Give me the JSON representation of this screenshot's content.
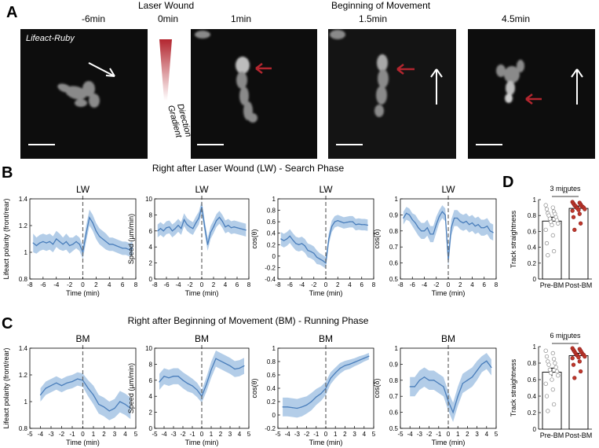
{
  "panel_labels": {
    "a": "A",
    "b": "B",
    "c": "C",
    "d": "D"
  },
  "panelA": {
    "labels": {
      "laser_wound": "Laser Wound",
      "beginning_of_movement": "Beginning of Movement",
      "lifeact": "Lifeact-Ruby",
      "gradient": "Gradient",
      "direction": "Direction"
    },
    "timepoints": [
      {
        "label": "-6min"
      },
      {
        "label": "0min"
      },
      {
        "label": "1min"
      },
      {
        "label": "1.5min"
      },
      {
        "label": "4.5min"
      }
    ],
    "colors": {
      "arrow_red": "#b3262f",
      "arrow_white": "#ffffff",
      "gradient_top": "#b3262f",
      "gradient_bottom": "#ffffff"
    }
  },
  "titles": {
    "rowB": "Right after Laser Wound (LW) - Search Phase",
    "rowC": "Right after Beginning of Movement (BM) - Running Phase"
  },
  "colors": {
    "line": "#4a7ebb",
    "band": "#b3cde8",
    "dot_post": "#c0392b"
  },
  "chart_data": [
    {
      "id": "B1",
      "type": "line",
      "event": "LW",
      "xlabel": "Time (min)",
      "ylabel": "Lifeact polarity (front/rear)",
      "xlim": [
        -8,
        8
      ],
      "ylim": [
        0.8,
        1.4
      ],
      "xticks": [
        -8,
        -6,
        -4,
        -2,
        0,
        2,
        4,
        6,
        8
      ],
      "yticks": [
        0.8,
        1,
        1.2,
        1.4
      ],
      "ytick_labels": [
        "0.8",
        "1",
        "1.2",
        "1.4"
      ],
      "x": [
        -7.5,
        -7,
        -6.5,
        -6,
        -5.5,
        -5,
        -4.5,
        -4,
        -3.5,
        -3,
        -2.5,
        -2,
        -1.5,
        -1,
        -0.5,
        0,
        0.5,
        1,
        1.5,
        2,
        2.5,
        3,
        3.5,
        4,
        4.5,
        5,
        5.5,
        6,
        6.5,
        7,
        7.5
      ],
      "y": [
        1.07,
        1.05,
        1.07,
        1.08,
        1.07,
        1.08,
        1.06,
        1.1,
        1.08,
        1.06,
        1.08,
        1.05,
        1.06,
        1.08,
        1.06,
        1.0,
        1.14,
        1.26,
        1.22,
        1.16,
        1.12,
        1.1,
        1.08,
        1.06,
        1.06,
        1.05,
        1.04,
        1.03,
        1.03,
        1.02,
        1.03
      ],
      "err": [
        0.07,
        0.06,
        0.06,
        0.06,
        0.06,
        0.06,
        0.06,
        0.06,
        0.06,
        0.05,
        0.06,
        0.06,
        0.05,
        0.05,
        0.05,
        0.05,
        0.06,
        0.06,
        0.06,
        0.06,
        0.06,
        0.06,
        0.06,
        0.05,
        0.05,
        0.05,
        0.05,
        0.05,
        0.05,
        0.05,
        0.05
      ]
    },
    {
      "id": "B2",
      "type": "line",
      "event": "LW",
      "xlabel": "Time (min)",
      "ylabel": "Speed (µm/min)",
      "xlim": [
        -8,
        8
      ],
      "ylim": [
        0,
        10
      ],
      "xticks": [
        -8,
        -6,
        -4,
        -2,
        0,
        2,
        4,
        6,
        8
      ],
      "yticks": [
        0,
        2,
        4,
        6,
        8,
        10
      ],
      "ytick_labels": [
        "0",
        "2",
        "4",
        "6",
        "8",
        "10"
      ],
      "x": [
        -7.5,
        -7,
        -6.5,
        -6,
        -5.5,
        -5,
        -4.5,
        -4,
        -3.5,
        -3,
        -2.5,
        -2,
        -1.5,
        -1,
        -0.5,
        0,
        0.5,
        1,
        1.5,
        2,
        2.5,
        3,
        3.5,
        4,
        4.5,
        5,
        5.5,
        6,
        6.5,
        7,
        7.5
      ],
      "y": [
        6.0,
        6.3,
        6.0,
        6.4,
        6.5,
        6.0,
        6.3,
        6.7,
        6.3,
        7.4,
        6.8,
        6.5,
        6.3,
        7.0,
        7.6,
        9.0,
        6.5,
        4.3,
        5.8,
        6.5,
        7.3,
        7.7,
        7.2,
        6.5,
        6.7,
        6.4,
        6.5,
        6.4,
        6.3,
        6.2,
        6.1
      ],
      "err": [
        0.8,
        0.8,
        0.8,
        0.8,
        0.8,
        0.8,
        0.8,
        0.8,
        0.8,
        0.8,
        0.8,
        0.8,
        0.8,
        0.8,
        0.8,
        0.8,
        0.8,
        0.8,
        0.8,
        0.8,
        0.8,
        0.8,
        0.8,
        0.8,
        0.8,
        0.8,
        0.8,
        0.8,
        0.8,
        0.8,
        0.8
      ]
    },
    {
      "id": "B3",
      "type": "line",
      "event": "LW",
      "xlabel": "Time (min)",
      "ylabel": "cos(θ)",
      "xlim": [
        -8,
        8
      ],
      "ylim": [
        -0.4,
        1
      ],
      "xticks": [
        -8,
        -6,
        -4,
        -2,
        0,
        2,
        4,
        6,
        8
      ],
      "yticks": [
        -0.4,
        -0.2,
        0,
        0.2,
        0.4,
        0.6,
        0.8,
        1
      ],
      "ytick_labels": [
        "-0.4",
        "-0.2",
        "0",
        "0.2",
        "0.4",
        "0.6",
        "0.8",
        "1"
      ],
      "x": [
        -7.5,
        -7,
        -6.5,
        -6,
        -5.5,
        -5,
        -4.5,
        -4,
        -3.5,
        -3,
        -2.5,
        -2,
        -1.5,
        -1,
        -0.5,
        0,
        0.5,
        1,
        1.5,
        2,
        2.5,
        3,
        3.5,
        4,
        4.5,
        5,
        5.5,
        6,
        6.5,
        7
      ],
      "y": [
        0.3,
        0.27,
        0.3,
        0.35,
        0.28,
        0.22,
        0.2,
        0.22,
        0.18,
        0.1,
        0.08,
        0.05,
        -0.02,
        -0.05,
        -0.08,
        -0.12,
        0.3,
        0.52,
        0.6,
        0.62,
        0.6,
        0.58,
        0.59,
        0.6,
        0.6,
        0.55,
        0.56,
        0.55,
        0.55,
        0.54
      ],
      "err": [
        0.12,
        0.12,
        0.12,
        0.12,
        0.12,
        0.12,
        0.12,
        0.12,
        0.12,
        0.12,
        0.12,
        0.12,
        0.12,
        0.1,
        0.1,
        0.1,
        0.1,
        0.1,
        0.1,
        0.1,
        0.1,
        0.1,
        0.1,
        0.1,
        0.1,
        0.1,
        0.1,
        0.1,
        0.1,
        0.1
      ]
    },
    {
      "id": "B4",
      "type": "line",
      "event": "LW",
      "xlabel": "Time (min)",
      "ylabel": "cos(δ)",
      "xlim": [
        -8,
        8
      ],
      "ylim": [
        0.5,
        1
      ],
      "xticks": [
        -8,
        -6,
        -4,
        -2,
        0,
        2,
        4,
        6,
        8
      ],
      "yticks": [
        0.5,
        0.6,
        0.7,
        0.8,
        0.9,
        1
      ],
      "ytick_labels": [
        "0.5",
        "0.6",
        "0.7",
        "0.8",
        "0.9",
        "1"
      ],
      "x": [
        -7.5,
        -7,
        -6.5,
        -6,
        -5.5,
        -5,
        -4.5,
        -4,
        -3.5,
        -3,
        -2.5,
        -2,
        -1.5,
        -1,
        -0.5,
        0,
        0.5,
        1,
        1.5,
        2,
        2.5,
        3,
        3.5,
        4,
        4.5,
        5,
        5.5,
        6,
        6.5,
        7,
        7.5
      ],
      "y": [
        0.88,
        0.91,
        0.9,
        0.87,
        0.85,
        0.82,
        0.8,
        0.8,
        0.82,
        0.78,
        0.78,
        0.84,
        0.89,
        0.92,
        0.9,
        0.62,
        0.82,
        0.88,
        0.88,
        0.86,
        0.85,
        0.86,
        0.84,
        0.85,
        0.83,
        0.84,
        0.82,
        0.82,
        0.83,
        0.8,
        0.79
      ],
      "err": [
        0.04,
        0.04,
        0.04,
        0.04,
        0.05,
        0.05,
        0.05,
        0.05,
        0.05,
        0.05,
        0.05,
        0.05,
        0.04,
        0.04,
        0.04,
        0.05,
        0.05,
        0.05,
        0.05,
        0.05,
        0.05,
        0.05,
        0.05,
        0.05,
        0.05,
        0.05,
        0.05,
        0.05,
        0.05,
        0.05,
        0.05
      ]
    },
    {
      "id": "C1",
      "type": "line",
      "event": "BM",
      "xlabel": "Time (min)",
      "ylabel": "Lifeact polarity (front/rear)",
      "xlim": [
        -5,
        5
      ],
      "ylim": [
        0.8,
        1.4
      ],
      "xticks": [
        -5,
        -4,
        -3,
        -2,
        -1,
        0,
        1,
        2,
        3,
        4,
        5
      ],
      "yticks": [
        0.8,
        1,
        1.2,
        1.4
      ],
      "ytick_labels": [
        "0.8",
        "1",
        "1.2",
        "1.4"
      ],
      "x": [
        -4,
        -3.5,
        -3,
        -2.5,
        -2,
        -1.5,
        -1,
        -0.5,
        0,
        0.5,
        1,
        1.5,
        2,
        2.5,
        3,
        3.5,
        4,
        4.5
      ],
      "y": [
        1.05,
        1.1,
        1.12,
        1.14,
        1.12,
        1.14,
        1.15,
        1.17,
        1.16,
        1.1,
        1.05,
        0.98,
        0.96,
        0.93,
        0.95,
        1.0,
        0.98,
        0.95
      ],
      "err": [
        0.05,
        0.05,
        0.05,
        0.05,
        0.05,
        0.05,
        0.05,
        0.05,
        0.05,
        0.06,
        0.07,
        0.07,
        0.07,
        0.07,
        0.07,
        0.08,
        0.08,
        0.08
      ]
    },
    {
      "id": "C2",
      "type": "line",
      "event": "BM",
      "xlabel": "Time (min)",
      "ylabel": "Speed (µm/min)",
      "xlim": [
        -5,
        5
      ],
      "ylim": [
        0,
        10
      ],
      "xticks": [
        -5,
        -4,
        -3,
        -2,
        -1,
        0,
        1,
        2,
        3,
        4,
        5
      ],
      "yticks": [
        0,
        2,
        4,
        6,
        8,
        10
      ],
      "ytick_labels": [
        "0",
        "2",
        "4",
        "6",
        "8",
        "10"
      ],
      "x": [
        -4.5,
        -4,
        -3.5,
        -3,
        -2.5,
        -2,
        -1.5,
        -1,
        -0.5,
        0,
        0.5,
        1,
        1.5,
        2,
        2.5,
        3,
        3.5,
        4,
        4.5
      ],
      "y": [
        5.8,
        6.5,
        6.3,
        6.5,
        6.5,
        6.0,
        5.6,
        5.3,
        4.8,
        4.0,
        5.5,
        7.3,
        8.7,
        8.4,
        8.1,
        7.8,
        7.4,
        7.5,
        7.8
      ],
      "err": [
        1.0,
        1.0,
        1.0,
        1.0,
        1.0,
        1.0,
        1.0,
        0.9,
        0.9,
        0.8,
        0.9,
        1.0,
        1.0,
        1.0,
        1.0,
        1.0,
        1.0,
        1.0,
        1.0
      ]
    },
    {
      "id": "C3",
      "type": "line",
      "event": "BM",
      "xlabel": "Time (min)",
      "ylabel": "cos(θ)",
      "xlim": [
        -5,
        5
      ],
      "ylim": [
        -0.2,
        1
      ],
      "xticks": [
        -5,
        -4,
        -3,
        -2,
        -1,
        0,
        1,
        2,
        3,
        4,
        5
      ],
      "yticks": [
        -0.2,
        0,
        0.2,
        0.4,
        0.6,
        0.8,
        1
      ],
      "ytick_labels": [
        "-0.2",
        "0",
        "0.2",
        "0.4",
        "0.6",
        "0.8",
        "1"
      ],
      "x": [
        -4.5,
        -4,
        -3.5,
        -3,
        -2.5,
        -2,
        -1.5,
        -1,
        -0.5,
        0,
        0.5,
        1,
        1.5,
        2,
        2.5,
        3,
        3.5,
        4,
        4.5
      ],
      "y": [
        0.12,
        0.12,
        0.11,
        0.1,
        0.12,
        0.15,
        0.2,
        0.27,
        0.32,
        0.4,
        0.55,
        0.63,
        0.7,
        0.74,
        0.76,
        0.79,
        0.82,
        0.85,
        0.88
      ],
      "err": [
        0.14,
        0.14,
        0.14,
        0.14,
        0.14,
        0.13,
        0.13,
        0.12,
        0.11,
        0.1,
        0.09,
        0.08,
        0.08,
        0.07,
        0.07,
        0.06,
        0.06,
        0.05,
        0.05
      ]
    },
    {
      "id": "C4",
      "type": "line",
      "event": "BM",
      "xlabel": "Time (min)",
      "ylabel": "cos(δ)",
      "xlim": [
        -5,
        5
      ],
      "ylim": [
        0.5,
        1
      ],
      "xticks": [
        -5,
        -4,
        -3,
        -2,
        -1,
        0,
        1,
        2,
        3,
        4,
        5
      ],
      "yticks": [
        0.5,
        0.6,
        0.7,
        0.8,
        0.9,
        1
      ],
      "ytick_labels": [
        "0.5",
        "0.6",
        "0.7",
        "0.8",
        "0.9",
        "1"
      ],
      "x": [
        -4,
        -3.5,
        -3,
        -2.5,
        -2,
        -1.5,
        -1,
        -0.5,
        0,
        0.5,
        1,
        1.5,
        2,
        2.5,
        3,
        3.5,
        4,
        4.5
      ],
      "y": [
        0.76,
        0.76,
        0.8,
        0.82,
        0.8,
        0.8,
        0.78,
        0.76,
        0.67,
        0.6,
        0.7,
        0.78,
        0.8,
        0.82,
        0.86,
        0.9,
        0.92,
        0.88
      ],
      "err": [
        0.06,
        0.06,
        0.06,
        0.06,
        0.06,
        0.06,
        0.06,
        0.06,
        0.06,
        0.06,
        0.06,
        0.06,
        0.06,
        0.06,
        0.06,
        0.05,
        0.05,
        0.05
      ]
    },
    {
      "id": "D1",
      "type": "bar",
      "title": "3 minutes",
      "significance": "**",
      "ylabel": "Track straightness",
      "categories": [
        "Pre-BM",
        "Post-BM"
      ],
      "values": [
        0.73,
        0.89
      ],
      "err": [
        0.05,
        0.03
      ],
      "ylim": [
        0,
        1
      ],
      "yticks": [
        0,
        0.2,
        0.4,
        0.6,
        0.8,
        1
      ],
      "ytick_labels": [
        "0",
        "0.2",
        "0.4",
        "0.6",
        "0.8",
        "1"
      ],
      "points": [
        [
          0.93,
          0.9,
          0.88,
          0.85,
          0.83,
          0.82,
          0.8,
          0.78,
          0.76,
          0.74,
          0.72,
          0.7,
          0.68,
          0.62,
          0.55,
          0.45,
          0.35,
          0.3
        ],
        [
          0.97,
          0.96,
          0.95,
          0.94,
          0.93,
          0.92,
          0.92,
          0.91,
          0.9,
          0.9,
          0.89,
          0.88,
          0.87,
          0.86,
          0.82,
          0.78,
          0.7,
          0.62
        ]
      ]
    },
    {
      "id": "D2",
      "type": "bar",
      "title": "6 minutes",
      "significance": "**",
      "ylabel": "Track straightness",
      "categories": [
        "Pre-BM",
        "Post-BM"
      ],
      "values": [
        0.69,
        0.89
      ],
      "err": [
        0.05,
        0.03
      ],
      "ylim": [
        0,
        1
      ],
      "yticks": [
        0,
        0.2,
        0.4,
        0.6,
        0.8,
        1
      ],
      "ytick_labels": [
        "0",
        "0.2",
        "0.4",
        "0.6",
        "0.8",
        "1"
      ],
      "points": [
        [
          0.95,
          0.92,
          0.88,
          0.85,
          0.82,
          0.8,
          0.78,
          0.75,
          0.72,
          0.7,
          0.68,
          0.65,
          0.6,
          0.55,
          0.48,
          0.4,
          0.3,
          0.22
        ],
        [
          0.98,
          0.97,
          0.96,
          0.95,
          0.94,
          0.93,
          0.92,
          0.91,
          0.9,
          0.9,
          0.89,
          0.88,
          0.87,
          0.86,
          0.82,
          0.78,
          0.7,
          0.62
        ]
      ]
    }
  ]
}
